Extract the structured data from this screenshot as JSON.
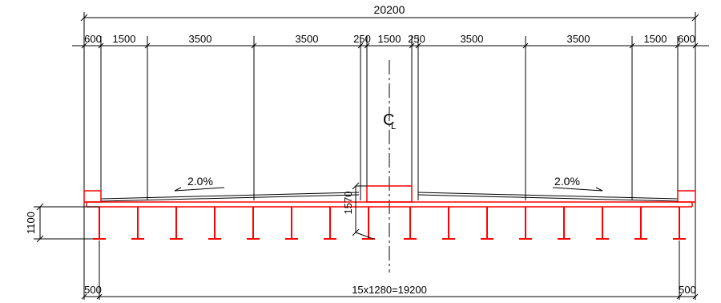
{
  "colors": {
    "structure": "#ff0000",
    "dimension": "#000000",
    "background": "#ffffff"
  },
  "top": {
    "overall": "20200",
    "segments": [
      "600",
      "1500",
      "3500",
      "3500",
      "250",
      "1500",
      "250",
      "3500",
      "3500",
      "1500",
      "600"
    ]
  },
  "centerline": {
    "symbol": "C",
    "sub": "L"
  },
  "slopes": {
    "left": "2.0%",
    "right": "2.0%"
  },
  "heights": {
    "girder": "1100",
    "median": "1570"
  },
  "bottom": {
    "left": "500",
    "middle": "15x1280=19200",
    "right": "500"
  }
}
